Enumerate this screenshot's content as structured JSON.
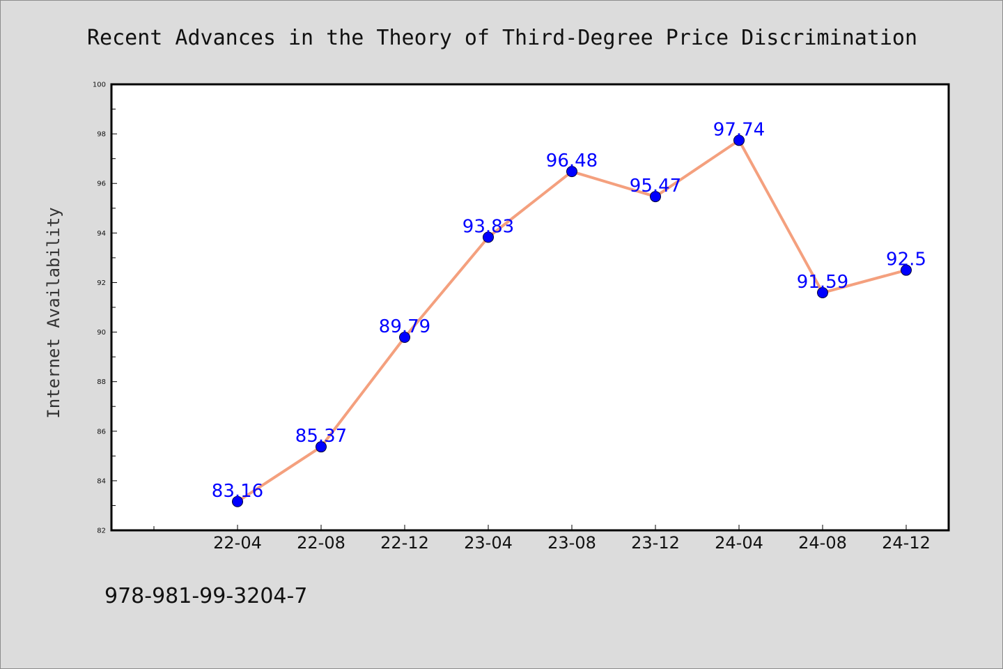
{
  "chart_data": {
    "type": "line",
    "title": "Recent Advances in the Theory of Third-Degree Price Discrimination",
    "xlabel": "",
    "ylabel": "Internet Availability",
    "categories": [
      "22-04",
      "22-08",
      "22-12",
      "23-04",
      "23-08",
      "23-12",
      "24-04",
      "24-08",
      "24-12"
    ],
    "series": [
      {
        "values": [
          83.16,
          85.37,
          89.79,
          93.83,
          96.48,
          95.47,
          97.74,
          91.59,
          92.5
        ],
        "labels": [
          "83.16",
          "85.37",
          "89.79",
          "93.83",
          "96.48",
          "95.47",
          "97.74",
          "91.59",
          "92.5"
        ]
      }
    ],
    "ylim": [
      82,
      100
    ],
    "yticks": [
      "82",
      "84",
      "86",
      "88",
      "90",
      "92",
      "94",
      "96",
      "98",
      "100"
    ],
    "grid": false,
    "line_color": "#f4a07e",
    "marker_color": "#0000ff",
    "label_color": "#0000ff",
    "plot_background": "#ffffff",
    "page_background": "#dcdcdc"
  },
  "footer": {
    "isbn": "978-981-99-3204-7"
  }
}
